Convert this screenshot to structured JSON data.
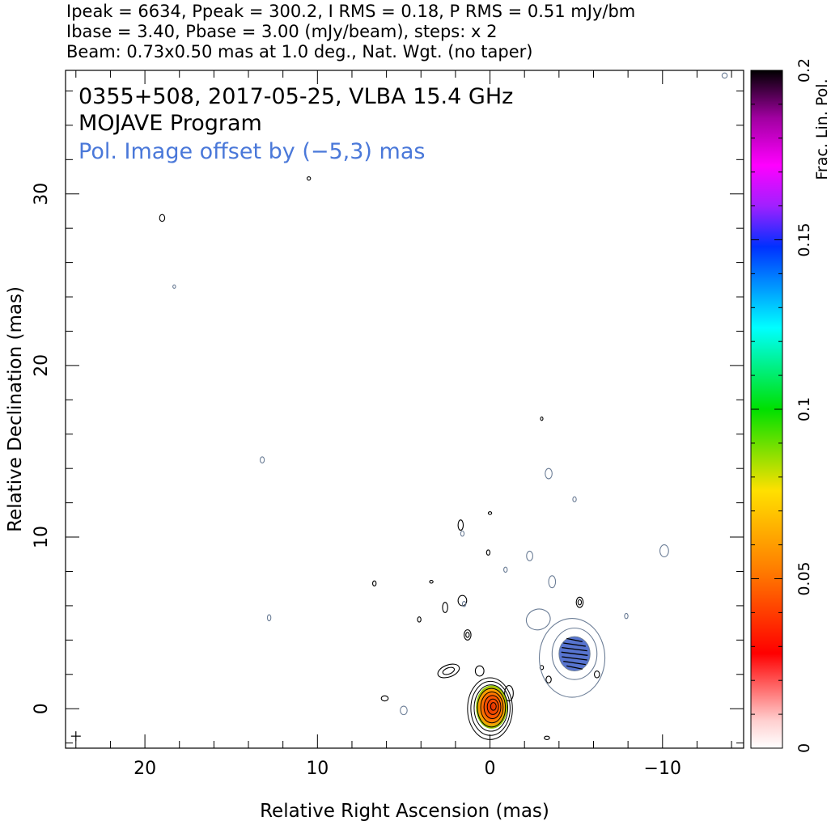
{
  "header": {
    "line1": "Ipeak = 6634, Ppeak = 300.2, I RMS = 0.18, P RMS = 0.51 mJy/bm",
    "line2": "Ibase = 3.40, Pbase = 3.00 (mJy/beam), steps: x 2",
    "line3": "Beam: 0.73x0.50 mas at 1.0 deg., Nat. Wgt. (no taper)"
  },
  "chart_data": {
    "type": "contour",
    "title": "0355+508, 2017-05-25, VLBA 15.4 GHz",
    "subtitle": "MOJAVE Program",
    "annotation": "Pol. Image offset by (−5,3) mas",
    "xlabel": "Relative Right Ascension (mas)",
    "ylabel": "Relative Declination (mas)",
    "xlim": [
      24.6,
      -14.7
    ],
    "ylim": [
      -2.3,
      37.2
    ],
    "x_ticks": [
      20,
      10,
      0,
      -10
    ],
    "x_tick_labels": [
      "20",
      "10",
      "0",
      "−10"
    ],
    "y_ticks": [
      0,
      10,
      20,
      30
    ],
    "y_tick_labels": [
      "0",
      "10",
      "20",
      "30"
    ],
    "colorbar": {
      "label": "Frac. Lin. Pol.",
      "range": [
        0,
        0.2
      ],
      "ticks": [
        0,
        0.05,
        0.1,
        0.15,
        0.2
      ],
      "tick_labels": [
        "0",
        "0.05",
        "0.1",
        "0.15",
        "0.2"
      ]
    },
    "colors": {
      "stokes_i": "#000000",
      "polarization": "#6b7d96",
      "annotation": "#4a78d9",
      "pol_fill": "#3a5cc8"
    },
    "core": {
      "x": 0,
      "y": 0,
      "rx": 1.3,
      "ry": 1.8,
      "levels": 8
    },
    "pol_component": {
      "x": -4.9,
      "y": 3.2,
      "rx": 0.9,
      "ry": 1.0
    },
    "beam_marker": {
      "x": 24.0,
      "y": -1.6
    },
    "features": [
      {
        "x": 19.0,
        "y": 28.6,
        "rx": 0.15,
        "ry": 0.2,
        "set": "i"
      },
      {
        "x": 10.5,
        "y": 30.9,
        "rx": 0.1,
        "ry": 0.1,
        "set": "i"
      },
      {
        "x": 18.3,
        "y": 24.6,
        "rx": 0.08,
        "ry": 0.1,
        "set": "p"
      },
      {
        "x": 13.2,
        "y": 14.5,
        "rx": 0.12,
        "ry": 0.18,
        "set": "p"
      },
      {
        "x": 12.8,
        "y": 5.3,
        "rx": 0.1,
        "ry": 0.18,
        "set": "p"
      },
      {
        "x": 6.7,
        "y": 7.3,
        "rx": 0.1,
        "ry": 0.15,
        "set": "i"
      },
      {
        "x": 6.1,
        "y": 0.6,
        "rx": 0.2,
        "ry": 0.15,
        "set": "i"
      },
      {
        "x": 5.0,
        "y": -0.1,
        "rx": 0.2,
        "ry": 0.25,
        "set": "p"
      },
      {
        "x": 4.1,
        "y": 5.2,
        "rx": 0.1,
        "ry": 0.15,
        "set": "i"
      },
      {
        "x": 3.4,
        "y": 7.4,
        "rx": 0.1,
        "ry": 0.08,
        "set": "i"
      },
      {
        "x": 2.6,
        "y": 5.9,
        "rx": 0.15,
        "ry": 0.3,
        "set": "i"
      },
      {
        "x": 1.7,
        "y": 10.7,
        "rx": 0.15,
        "ry": 0.3,
        "set": "i"
      },
      {
        "x": 1.6,
        "y": 10.2,
        "rx": 0.1,
        "ry": 0.15,
        "set": "p"
      },
      {
        "x": 1.6,
        "y": 6.3,
        "rx": 0.25,
        "ry": 0.3,
        "set": "i"
      },
      {
        "x": 1.5,
        "y": 6.1,
        "rx": 0.1,
        "ry": 0.15,
        "set": "p"
      },
      {
        "x": 1.3,
        "y": 4.3,
        "rx": 0.2,
        "ry": 0.3,
        "set": "i"
      },
      {
        "x": 1.3,
        "y": 4.3,
        "rx": 0.1,
        "ry": 0.15,
        "set": "i"
      },
      {
        "x": 0.1,
        "y": 9.1,
        "rx": 0.1,
        "ry": 0.15,
        "set": "i"
      },
      {
        "x": 0.0,
        "y": 11.4,
        "rx": 0.1,
        "ry": 0.08,
        "set": "i"
      },
      {
        "x": -0.9,
        "y": 8.1,
        "rx": 0.1,
        "ry": 0.15,
        "set": "p"
      },
      {
        "x": -2.3,
        "y": 8.9,
        "rx": 0.18,
        "ry": 0.28,
        "set": "p"
      },
      {
        "x": -3.4,
        "y": 13.7,
        "rx": 0.2,
        "ry": 0.3,
        "set": "p"
      },
      {
        "x": -3.6,
        "y": 7.4,
        "rx": 0.2,
        "ry": 0.35,
        "set": "p"
      },
      {
        "x": -4.9,
        "y": 12.2,
        "rx": 0.1,
        "ry": 0.15,
        "set": "p"
      },
      {
        "x": -5.2,
        "y": 6.2,
        "rx": 0.2,
        "ry": 0.3,
        "set": "i"
      },
      {
        "x": -5.2,
        "y": 6.2,
        "rx": 0.1,
        "ry": 0.15,
        "set": "i"
      },
      {
        "x": -7.9,
        "y": 5.4,
        "rx": 0.1,
        "ry": 0.15,
        "set": "p"
      },
      {
        "x": -10.1,
        "y": 9.2,
        "rx": 0.25,
        "ry": 0.35,
        "set": "p"
      },
      {
        "x": -13.6,
        "y": 36.9,
        "rx": 0.15,
        "ry": 0.15,
        "set": "p"
      },
      {
        "x": -3.3,
        "y": -1.7,
        "rx": 0.15,
        "ry": 0.1,
        "set": "i"
      },
      {
        "x": -3.0,
        "y": 2.4,
        "rx": 0.1,
        "ry": 0.12,
        "set": "i"
      },
      {
        "x": -6.2,
        "y": 2.0,
        "rx": 0.15,
        "ry": 0.2,
        "set": "i"
      },
      {
        "x": -3.4,
        "y": 1.7,
        "rx": 0.15,
        "ry": 0.2,
        "set": "i"
      },
      {
        "x": -3.0,
        "y": 16.9,
        "rx": 0.04,
        "ry": 0.1,
        "set": "i"
      }
    ]
  }
}
